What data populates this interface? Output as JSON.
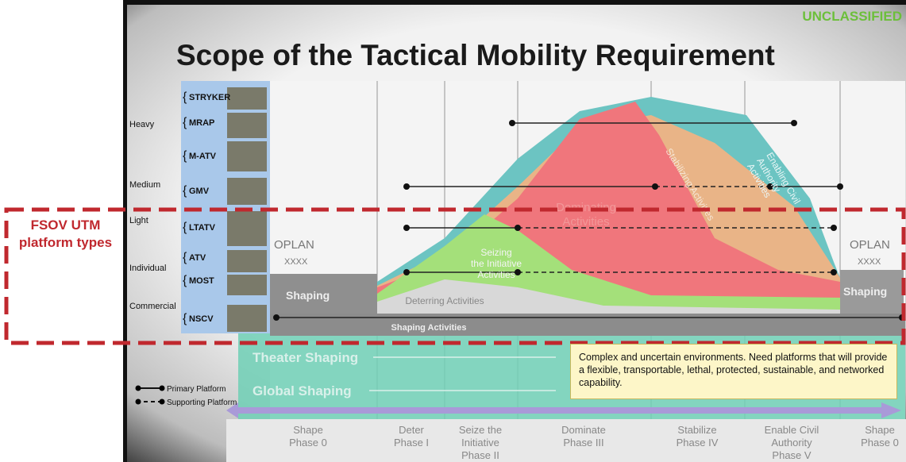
{
  "header": {
    "classification": "UNCLASSIFIED",
    "title": "Scope of the Tactical Mobility Requirement"
  },
  "callout": "FSOV UTM platform types",
  "weight_classes": [
    "Heavy",
    "Medium",
    "Light",
    "Individual",
    "Commercial"
  ],
  "vehicles": [
    "STRYKER",
    "MRAP",
    "M-ATV",
    "GMV",
    "LTATV",
    "ATV",
    "MOST",
    "NSCV"
  ],
  "oplan": {
    "left": [
      "OPLAN",
      "XXXX"
    ],
    "right": [
      "OPLAN",
      "XXXX"
    ]
  },
  "shaping_boxes": {
    "left": "Shaping",
    "right": "Shaping"
  },
  "activities": {
    "dominating": [
      "Dominating",
      "Activities"
    ],
    "stabilizing": "Stabilizing Activities",
    "enabling": [
      "Enabling Civil",
      "Authority",
      "Activities"
    ],
    "seizing": [
      "Seizing",
      "the Initiative",
      "Activities"
    ],
    "deterring": "Deterring Activities",
    "shaping": "Shaping Activities"
  },
  "theater_shaping": "Theater Shaping",
  "global_shaping": "Global Shaping",
  "note": "Complex and uncertain environments. Need platforms that will provide a flexible, transportable, lethal, protected, sustainable, and networked capability.",
  "legend": {
    "primary": "Primary Platform",
    "supporting": "Supporting Platform"
  },
  "phases": [
    [
      "Shape",
      "Phase 0"
    ],
    [
      "Deter",
      "Phase I"
    ],
    [
      "Seize the",
      "Initiative",
      "Phase II"
    ],
    [
      "Dominate",
      "Phase III"
    ],
    [
      "Stabilize",
      "Phase IV"
    ],
    [
      "Enable Civil",
      "Authority",
      "Phase V"
    ],
    [
      "Shape",
      "Phase 0"
    ]
  ]
}
